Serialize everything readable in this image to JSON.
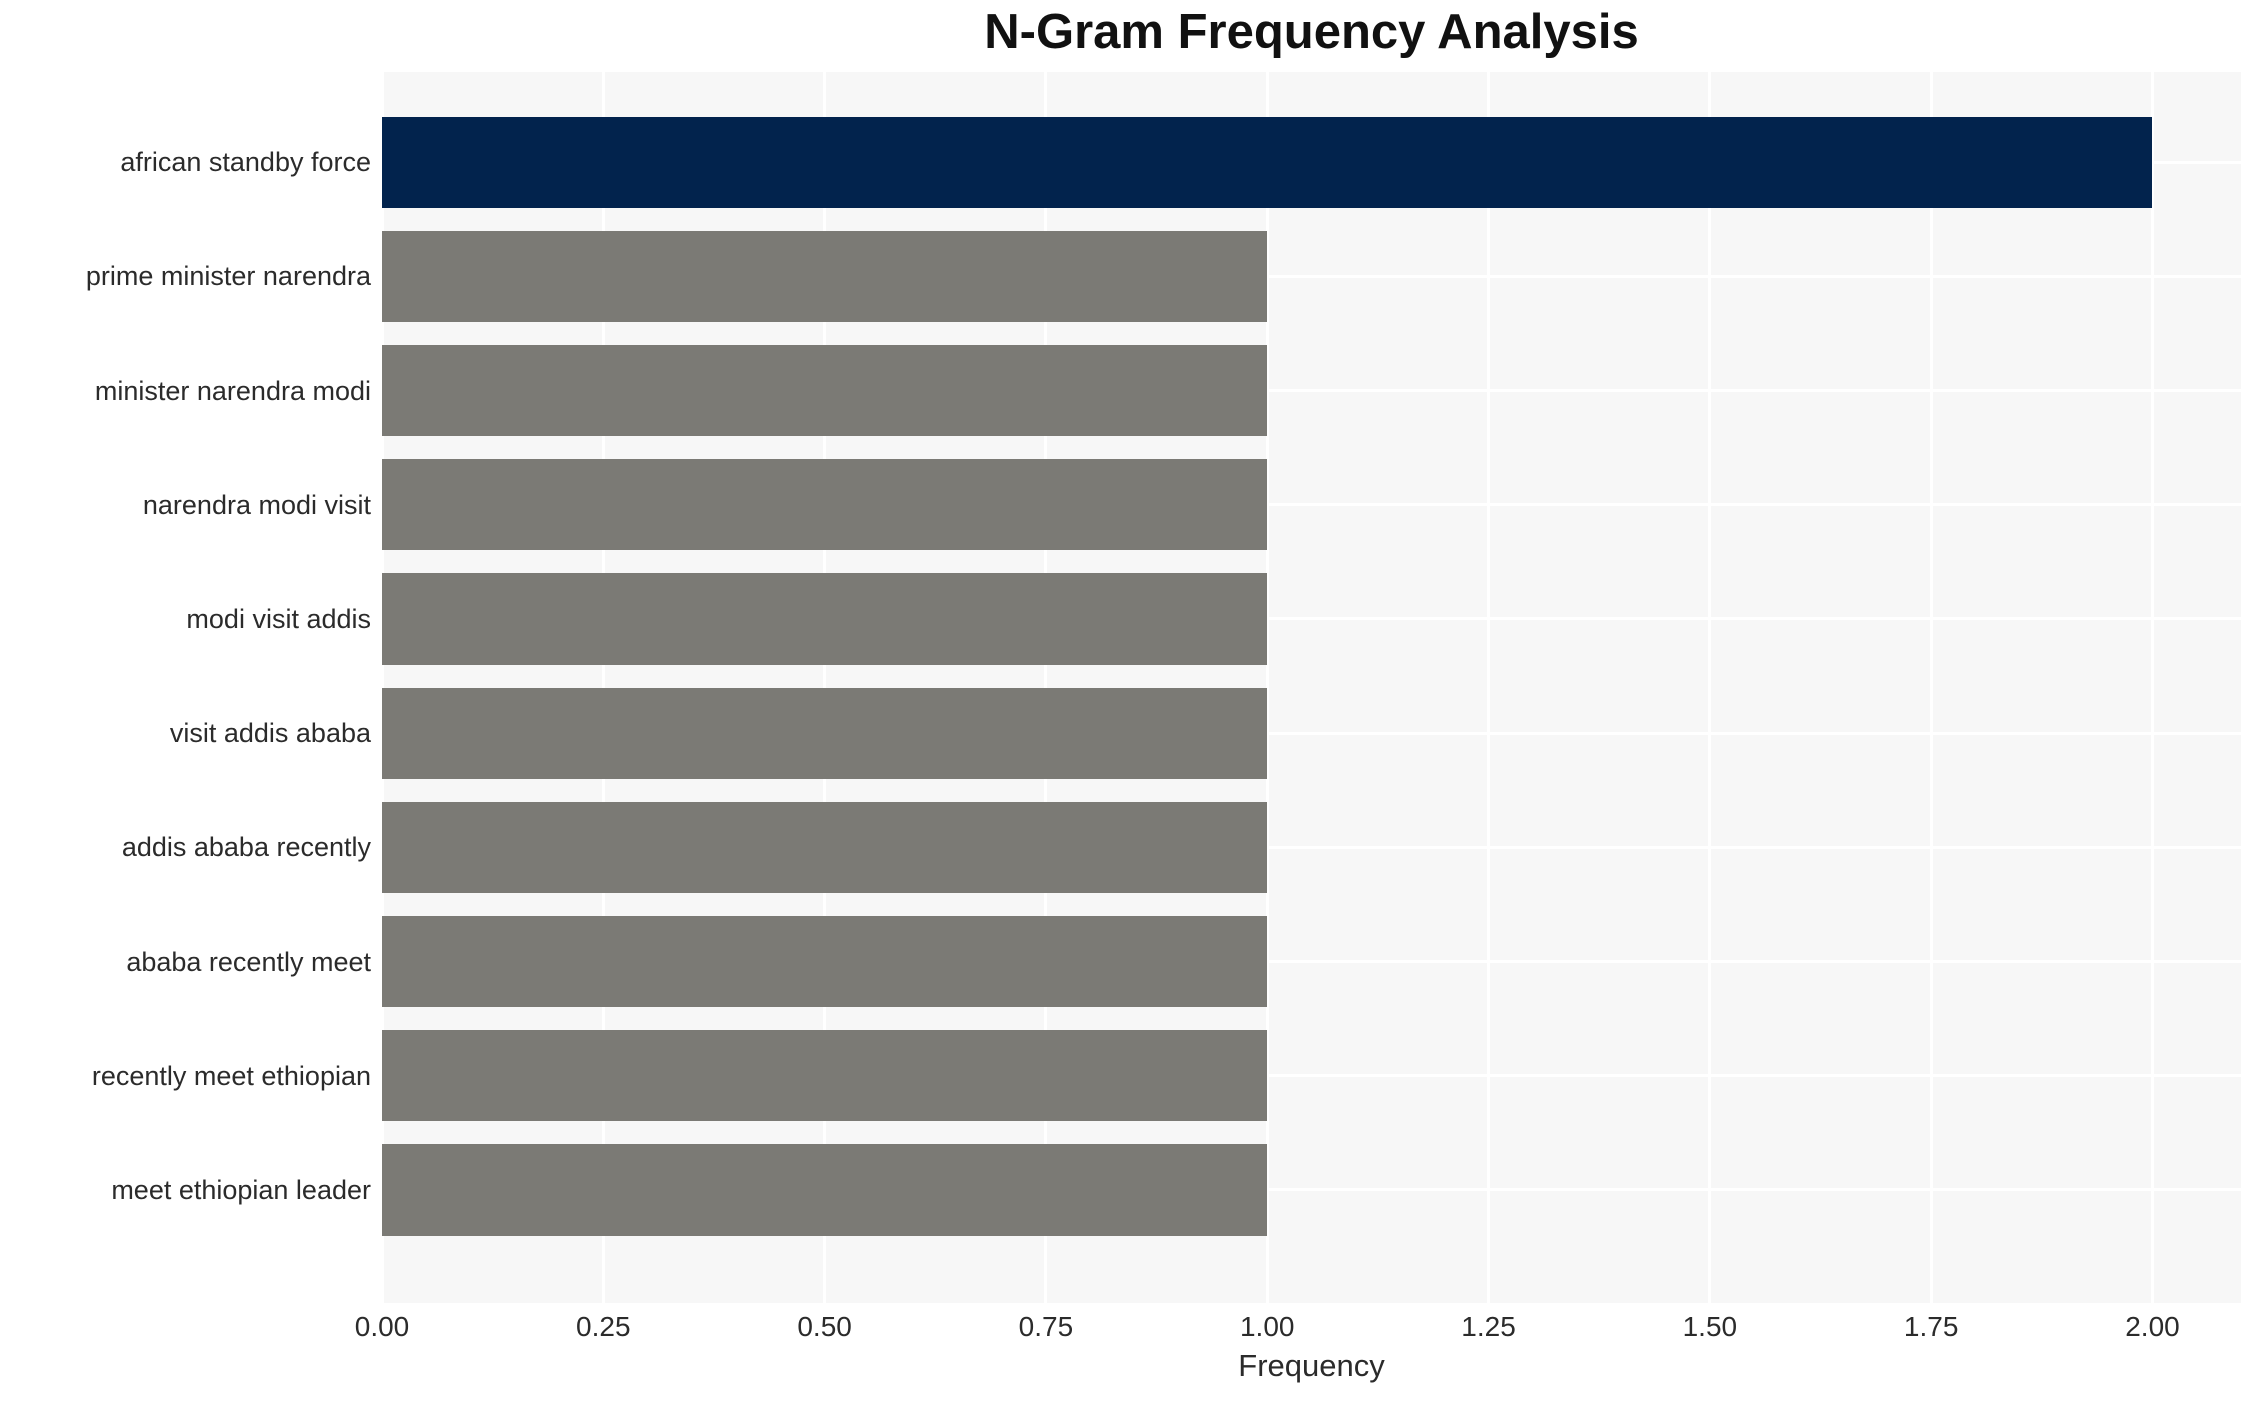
{
  "chart_data": {
    "type": "bar",
    "orientation": "horizontal",
    "title": "N-Gram Frequency Analysis",
    "xlabel": "Frequency",
    "ylabel": "",
    "categories": [
      "african standby force",
      "prime minister narendra",
      "minister narendra modi",
      "narendra modi visit",
      "modi visit addis",
      "visit addis ababa",
      "addis ababa recently",
      "ababa recently meet",
      "recently meet ethiopian",
      "meet ethiopian leader"
    ],
    "values": [
      2,
      1,
      1,
      1,
      1,
      1,
      1,
      1,
      1,
      1
    ],
    "bar_colors": [
      "#02234d",
      "#7b7a75",
      "#7b7a75",
      "#7b7a75",
      "#7b7a75",
      "#7b7a75",
      "#7b7a75",
      "#7b7a75",
      "#7b7a75",
      "#7b7a75"
    ],
    "xticks": [
      {
        "value": 0.0,
        "label": "0.00"
      },
      {
        "value": 0.25,
        "label": "0.25"
      },
      {
        "value": 0.5,
        "label": "0.50"
      },
      {
        "value": 0.75,
        "label": "0.75"
      },
      {
        "value": 1.0,
        "label": "1.00"
      },
      {
        "value": 1.25,
        "label": "1.25"
      },
      {
        "value": 1.5,
        "label": "1.50"
      },
      {
        "value": 1.75,
        "label": "1.75"
      },
      {
        "value": 2.0,
        "label": "2.00"
      }
    ],
    "xlim": [
      0,
      2.1
    ],
    "grid": true,
    "legend": false
  },
  "theme": {
    "page_bg": "#ffffff",
    "plot_bg": "#f7f7f7",
    "grid_color": "#ffffff",
    "highlight_color": "#02234d",
    "default_bar_color": "#7b7a75",
    "title_color": "#111111",
    "label_color": "#2b2b2b"
  }
}
